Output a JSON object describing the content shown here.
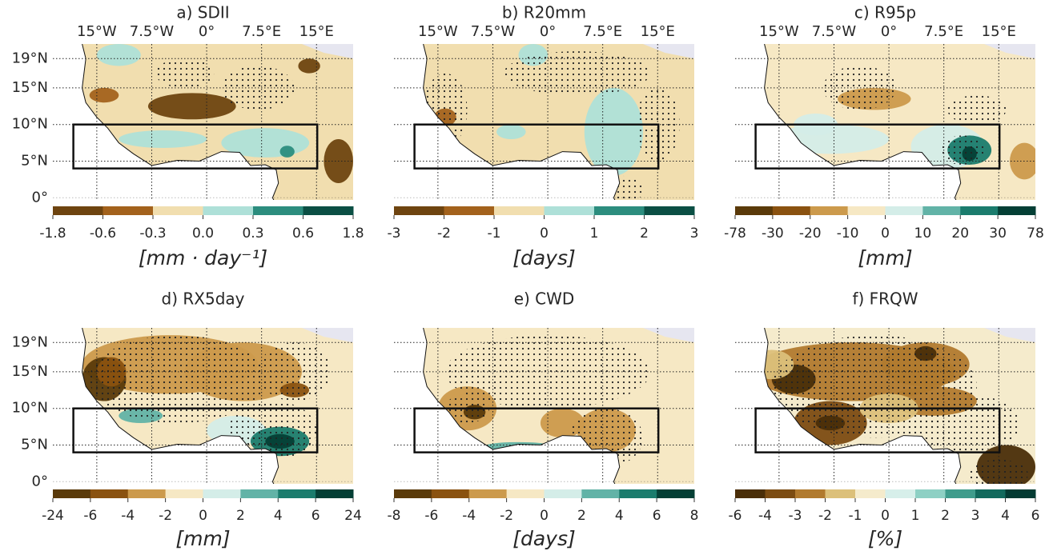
{
  "map": {
    "xlim": [
      -21,
      20
    ],
    "ylim": [
      -0.3,
      21
    ],
    "lon_ticks": [
      {
        "value": -15,
        "label": "15°W"
      },
      {
        "value": -7.5,
        "label": "7.5°W"
      },
      {
        "value": 0,
        "label": "0°"
      },
      {
        "value": 7.5,
        "label": "7.5°E"
      },
      {
        "value": 15,
        "label": "15°E"
      }
    ],
    "lat_ticks": [
      {
        "value": 19,
        "label": "19°N"
      },
      {
        "value": 15,
        "label": "15°N"
      },
      {
        "value": 10,
        "label": "10°N"
      },
      {
        "value": 5,
        "label": "5°N"
      },
      {
        "value": 0,
        "label": "0°"
      }
    ]
  },
  "panels": [
    {
      "title": "a) SDII",
      "unit": "[mm · day⁻¹]",
      "colorbar": {
        "ticks": [
          -1.8,
          -0.6,
          -0.3,
          {
            "value": 0,
            "label": "0.0"
          },
          0.3,
          0.6,
          1.8
        ],
        "colors": [
          "#6e4410",
          "#a3621c",
          "#f1deaf",
          "#aee0d8",
          "#2c8d7e",
          "#0b4f44"
        ]
      }
    },
    {
      "title": "b) R20mm",
      "unit": "[days]",
      "colorbar": {
        "ticks": [
          -3,
          -2,
          -1,
          0,
          1,
          2,
          3
        ],
        "colors": [
          "#6e4410",
          "#a3621c",
          "#f1deaf",
          "#aee0d8",
          "#2c8d7e",
          "#0b4f44"
        ]
      }
    },
    {
      "title": "c) R95p",
      "unit": "[mm]",
      "colorbar": {
        "ticks": [
          -78,
          -30,
          -20,
          -10,
          0,
          10,
          20,
          30,
          78
        ],
        "colors": [
          "#5a3a0a",
          "#8a5210",
          "#cc9a4c",
          "#f6e8c4",
          "#d4ede8",
          "#62b3a7",
          "#1b7c6d",
          "#043f35"
        ]
      }
    },
    {
      "title": "d) RX5day",
      "unit": "[mm]",
      "colorbar": {
        "ticks": [
          -24,
          -6,
          -4,
          -2,
          0,
          2,
          4,
          6,
          24
        ],
        "colors": [
          "#5a3a0a",
          "#8a5210",
          "#cc9a4c",
          "#f6e8c4",
          "#d4ede8",
          "#62b3a7",
          "#1b7c6d",
          "#043f35"
        ]
      }
    },
    {
      "title": "e) CWD",
      "unit": "[days]",
      "colorbar": {
        "ticks": [
          -8,
          -6,
          -4,
          -2,
          0,
          2,
          4,
          6,
          8
        ],
        "colors": [
          "#5a3a0a",
          "#8a5210",
          "#cc9a4c",
          "#f6e8c4",
          "#d4ede8",
          "#62b3a7",
          "#1b7c6d",
          "#043f35"
        ]
      }
    },
    {
      "title": "f) FRQW",
      "unit": "[%]",
      "colorbar": {
        "ticks": [
          -6,
          -4,
          -3,
          -2,
          -1,
          0,
          1,
          2,
          3,
          4,
          6
        ],
        "colors": [
          "#4a2e08",
          "#7c4c12",
          "#b17a2e",
          "#dcc07a",
          "#f5ebcc",
          "#d7efea",
          "#8ed0c4",
          "#3f9c8c",
          "#126a5d",
          "#033b33"
        ]
      }
    }
  ]
}
